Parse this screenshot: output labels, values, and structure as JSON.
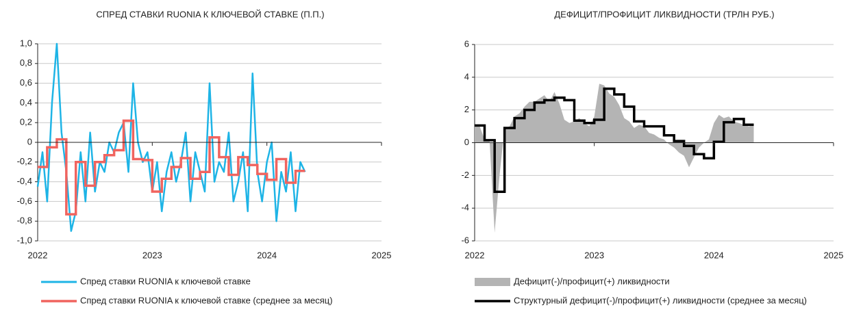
{
  "chart_data": [
    {
      "type": "line",
      "title": "СПРЕД СТАВКИ RUONIA К КЛЮЧЕВОЙ СТАВКЕ (П.П.)",
      "xlim": [
        2022,
        2025
      ],
      "xticks": [
        2022,
        2023,
        2024,
        2025
      ],
      "ylim": [
        -1,
        1
      ],
      "yticks": [
        {
          "value": -1,
          "label": "-1,0"
        },
        {
          "value": -0.8,
          "label": "-0,8"
        },
        {
          "value": -0.6,
          "label": "-0,6"
        },
        {
          "value": -0.4,
          "label": "-0,4"
        },
        {
          "value": -0.2,
          "label": "-0,2"
        },
        0,
        {
          "value": 0.2,
          "label": "0,2"
        },
        {
          "value": 0.4,
          "label": "0,4"
        },
        {
          "value": 0.6,
          "label": "0,6"
        },
        {
          "value": 0.8,
          "label": "0,8"
        },
        {
          "value": 1,
          "label": "1,0"
        }
      ],
      "grid": true,
      "series": [
        {
          "name": "Спред ставки RUONIA к ключевой ставке",
          "color": "#1eb4e6",
          "type": "line",
          "x": [
            2022.0,
            2022.042,
            2022.083,
            2022.125,
            2022.167,
            2022.208,
            2022.25,
            2022.292,
            2022.333,
            2022.375,
            2022.417,
            2022.458,
            2022.5,
            2022.542,
            2022.583,
            2022.625,
            2022.667,
            2022.708,
            2022.75,
            2022.792,
            2022.833,
            2022.875,
            2022.917,
            2022.958,
            2023.0,
            2023.042,
            2023.083,
            2023.125,
            2023.167,
            2023.208,
            2023.25,
            2023.292,
            2023.333,
            2023.375,
            2023.417,
            2023.458,
            2023.5,
            2023.542,
            2023.583,
            2023.625,
            2023.667,
            2023.708,
            2023.75,
            2023.792,
            2023.833,
            2023.875,
            2023.917,
            2023.958,
            2024.0,
            2024.042,
            2024.083,
            2024.125,
            2024.167,
            2024.208,
            2024.25,
            2024.292,
            2024.333
          ],
          "values": [
            -0.45,
            -0.1,
            -0.6,
            0.4,
            1.0,
            0.1,
            -0.3,
            -0.9,
            -0.7,
            -0.1,
            -0.6,
            0.1,
            -0.5,
            -0.2,
            -0.3,
            0.0,
            -0.1,
            0.1,
            0.2,
            -0.3,
            0.6,
            0.0,
            -0.2,
            -0.1,
            -0.5,
            -0.2,
            -0.7,
            -0.3,
            -0.1,
            -0.4,
            -0.2,
            0.1,
            -0.6,
            -0.1,
            -0.3,
            -0.5,
            0.6,
            -0.4,
            -0.2,
            -0.3,
            0.1,
            -0.6,
            -0.4,
            -0.1,
            -0.7,
            0.7,
            -0.3,
            -0.6,
            -0.2,
            0.0,
            -0.8,
            -0.3,
            -0.5,
            -0.1,
            -0.7,
            -0.2,
            -0.3
          ]
        },
        {
          "name": "Спред ставки RUONIA к ключевой ставке (среднее за месяц)",
          "color": "#f0645f",
          "type": "step",
          "x": [
            2022.0,
            2022.083,
            2022.167,
            2022.25,
            2022.333,
            2022.417,
            2022.5,
            2022.583,
            2022.667,
            2022.75,
            2022.833,
            2022.917,
            2023.0,
            2023.083,
            2023.167,
            2023.25,
            2023.333,
            2023.417,
            2023.5,
            2023.583,
            2023.667,
            2023.75,
            2023.833,
            2023.917,
            2024.0,
            2024.083,
            2024.167,
            2024.25
          ],
          "values": [
            -0.25,
            -0.05,
            0.03,
            -0.73,
            -0.2,
            -0.44,
            -0.2,
            -0.13,
            -0.08,
            0.22,
            -0.17,
            -0.18,
            -0.5,
            -0.37,
            -0.25,
            -0.16,
            -0.37,
            -0.3,
            0.05,
            -0.15,
            -0.33,
            -0.15,
            -0.23,
            -0.32,
            -0.38,
            -0.17,
            -0.41,
            -0.29
          ]
        }
      ]
    },
    {
      "type": "line",
      "title": "ДЕФИЦИТ/ПРОФИЦИТ ЛИКВИДНОСТИ (ТРЛН РУБ.)",
      "xlim": [
        2022,
        2025
      ],
      "xticks": [
        2022,
        2023,
        2024,
        2025
      ],
      "ylim": [
        -6,
        6
      ],
      "yticks": [
        -6,
        -4,
        -2,
        0,
        2,
        4,
        6
      ],
      "grid": true,
      "series": [
        {
          "name": "Дефицит(-)/профицит(+) ликвидности",
          "color": "#b4b4b4",
          "type": "area",
          "x": [
            2022.0,
            2022.042,
            2022.083,
            2022.125,
            2022.167,
            2022.208,
            2022.25,
            2022.292,
            2022.333,
            2022.375,
            2022.417,
            2022.458,
            2022.5,
            2022.542,
            2022.583,
            2022.625,
            2022.667,
            2022.708,
            2022.75,
            2022.792,
            2022.833,
            2022.875,
            2022.917,
            2022.958,
            2023.0,
            2023.042,
            2023.083,
            2023.125,
            2023.167,
            2023.208,
            2023.25,
            2023.292,
            2023.333,
            2023.375,
            2023.417,
            2023.458,
            2023.5,
            2023.542,
            2023.583,
            2023.625,
            2023.667,
            2023.708,
            2023.75,
            2023.792,
            2023.833,
            2023.875,
            2023.917,
            2023.958,
            2024.0,
            2024.042,
            2024.083,
            2024.125,
            2024.167,
            2024.208,
            2024.25,
            2024.292,
            2024.333
          ],
          "values": [
            1.1,
            1.0,
            0.2,
            0.1,
            -5.5,
            -2.0,
            0.9,
            1.0,
            1.6,
            1.8,
            2.2,
            2.5,
            2.5,
            2.7,
            2.9,
            2.5,
            3.1,
            2.4,
            1.4,
            1.2,
            1.3,
            1.5,
            1.2,
            1.0,
            1.6,
            3.6,
            3.5,
            3.0,
            2.8,
            2.3,
            1.5,
            1.3,
            0.9,
            1.1,
            1.0,
            0.6,
            0.5,
            0.3,
            0.2,
            -0.1,
            -0.3,
            -0.6,
            -0.8,
            -1.5,
            -0.9,
            -0.3,
            0.0,
            0.2,
            1.2,
            1.7,
            1.5,
            1.6,
            1.3,
            1.2,
            1.1,
            1.0,
            1.1
          ]
        },
        {
          "name": "Структурный дефицит(-)/профицит(+) ликвидности (среднее за месяц)",
          "color": "#000000",
          "type": "step",
          "x": [
            2022.0,
            2022.083,
            2022.167,
            2022.25,
            2022.333,
            2022.417,
            2022.5,
            2022.583,
            2022.667,
            2022.75,
            2022.833,
            2022.917,
            2023.0,
            2023.083,
            2023.167,
            2023.25,
            2023.333,
            2023.417,
            2023.5,
            2023.583,
            2023.667,
            2023.75,
            2023.833,
            2023.917,
            2024.0,
            2024.083,
            2024.167,
            2024.25
          ],
          "values": [
            1.05,
            0.15,
            -3.0,
            0.9,
            1.5,
            2.0,
            2.45,
            2.6,
            2.75,
            2.6,
            1.35,
            1.2,
            1.4,
            3.3,
            2.95,
            2.2,
            1.3,
            1.0,
            1.0,
            0.45,
            0.1,
            -0.2,
            -0.7,
            -0.95,
            0.05,
            1.25,
            1.45,
            1.1
          ]
        }
      ]
    }
  ]
}
